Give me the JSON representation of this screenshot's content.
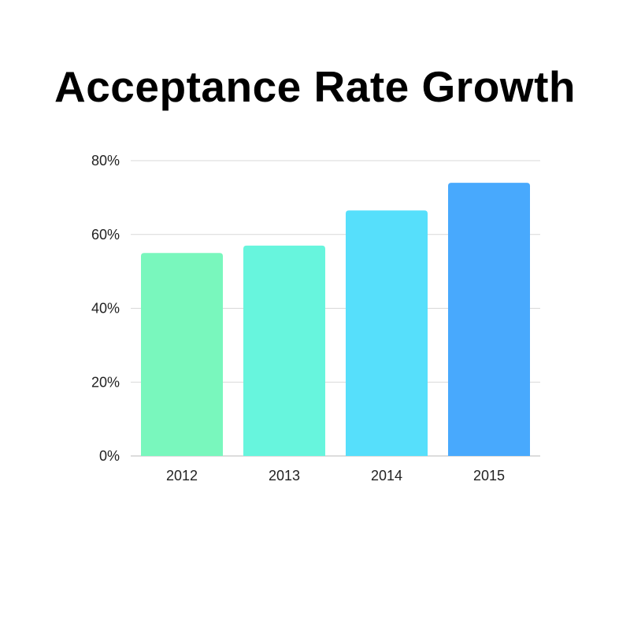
{
  "chart_data": {
    "type": "bar",
    "title": "Acceptance Rate Growth",
    "categories": [
      "2012",
      "2013",
      "2014",
      "2015"
    ],
    "values": [
      55,
      57,
      66.5,
      74
    ],
    "ylim": [
      0,
      80
    ],
    "yticks": [
      0,
      20,
      40,
      60,
      80
    ],
    "ytick_labels": [
      "0%",
      "20%",
      "40%",
      "60%",
      "80%"
    ],
    "grid": true,
    "xlabel": "",
    "ylabel": "",
    "bar_colors": [
      "#79f7bd",
      "#67f5dd",
      "#56dffb",
      "#48a9fd"
    ],
    "gridline_color": "#d9d9d9",
    "baseline_color": "#bbbbbb"
  }
}
